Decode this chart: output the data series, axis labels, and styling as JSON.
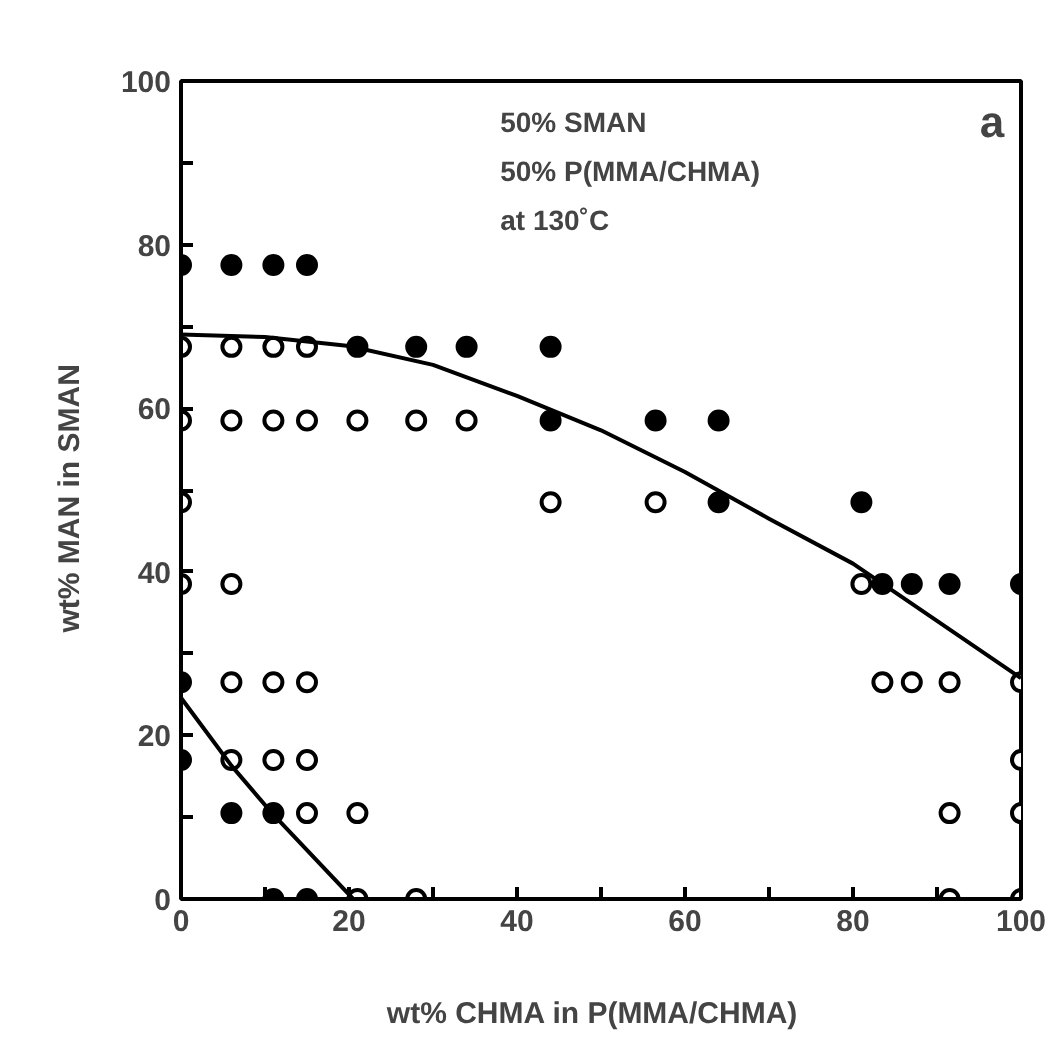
{
  "chart_data": {
    "type": "scatter",
    "xlabel": "wt% CHMA  in  P(MMA/CHMA)",
    "ylabel": "wt% MAN  in  SMAN",
    "xlim": [
      0,
      100
    ],
    "ylim": [
      0,
      100
    ],
    "xticks": [
      0,
      {
        "value": 10,
        "label": null
      },
      20,
      {
        "value": 30,
        "label": null
      },
      40,
      {
        "value": 50,
        "label": null
      },
      60,
      {
        "value": 70,
        "label": null
      },
      80,
      {
        "value": 90,
        "label": null
      },
      100
    ],
    "yticks": [
      0,
      {
        "value": 10,
        "label": null
      },
      20,
      {
        "value": 30,
        "label": null
      },
      40,
      {
        "value": 50,
        "label": null
      },
      60,
      {
        "value": 70,
        "label": null
      },
      80,
      {
        "value": 90,
        "label": null
      },
      100
    ],
    "grid": false,
    "marker": "circle",
    "annotations": [
      "50%  SMAN",
      "50%  P(MMA/CHMA)",
      "at  130˚C",
      "a"
    ],
    "series": [
      {
        "color": "#000000",
        "x": [
          0,
          6,
          11,
          15,
          21,
          28,
          34,
          44,
          44,
          56.5,
          64,
          64,
          81,
          83.5,
          87,
          91.5,
          100,
          0,
          0,
          6,
          11,
          11,
          15
        ],
        "values": [
          77.5,
          77.5,
          77.5,
          77.5,
          67.5,
          67.5,
          67.5,
          67.5,
          58.5,
          58.5,
          58.5,
          48.5,
          48.5,
          38.5,
          38.5,
          38.5,
          38.5,
          26.5,
          17,
          10.5,
          10.5,
          0,
          0
        ]
      },
      {
        "color": "#ffffff",
        "x": [
          0,
          6,
          11,
          15,
          0,
          6,
          11,
          15,
          21,
          28,
          34,
          0,
          44,
          56.5,
          0,
          6,
          81,
          6,
          11,
          15,
          83.5,
          87,
          91.5,
          100,
          6,
          11,
          15,
          100,
          15,
          21,
          91.5,
          100,
          21,
          28,
          91.5,
          100
        ],
        "values": [
          67.5,
          67.5,
          67.5,
          67.5,
          58.5,
          58.5,
          58.5,
          58.5,
          58.5,
          58.5,
          58.5,
          48.5,
          48.5,
          48.5,
          38.5,
          38.5,
          38.5,
          26.5,
          26.5,
          26.5,
          26.5,
          26.5,
          26.5,
          26.5,
          17,
          17,
          17,
          17,
          10.5,
          10.5,
          10.5,
          10.5,
          0,
          0,
          0,
          0
        ]
      },
      {
        "type": "line",
        "marker": "none",
        "color": "#000000",
        "x": [
          0,
          10,
          20,
          30,
          40,
          50,
          60,
          70,
          80,
          90,
          100
        ],
        "values": [
          69,
          68.7,
          67.6,
          65.3,
          61.5,
          57.3,
          52.2,
          46.5,
          41,
          34,
          27
        ]
      },
      {
        "type": "line",
        "marker": "none",
        "color": "#000000",
        "x": [
          0,
          6,
          11,
          20.5
        ],
        "values": [
          24.6,
          16.3,
          10.3,
          0
        ]
      }
    ]
  }
}
